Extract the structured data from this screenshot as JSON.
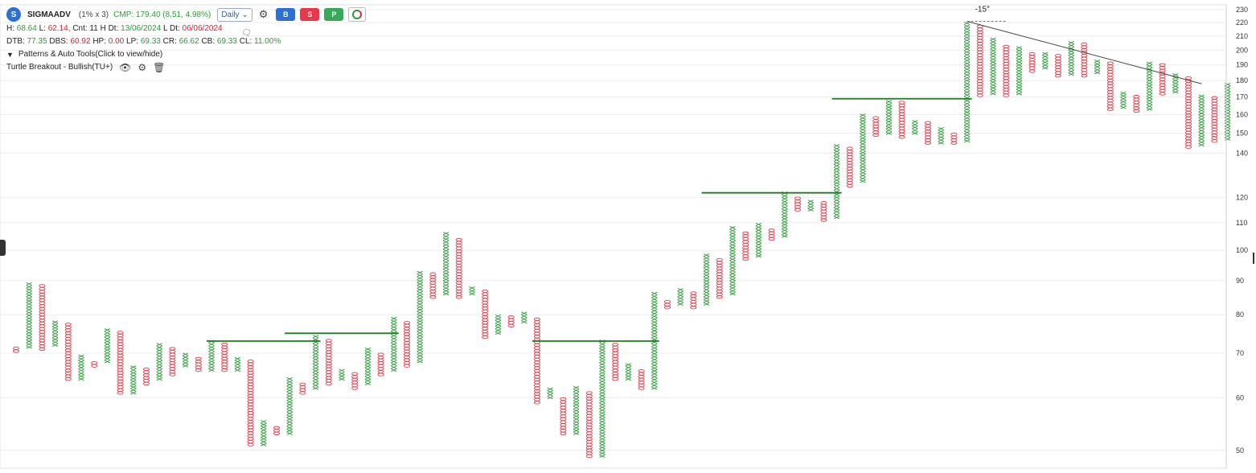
{
  "header": {
    "logo_letter": "S",
    "symbol": "SIGMAADV",
    "box_reversal": "(1% x 3)",
    "cmp": "CMP: 179.40 (8.51, 4.98%)",
    "timeframe": "Daily",
    "buy_label": "B",
    "sell_label": "S",
    "p_label": "P",
    "colors": {
      "buy": "#2d6fd2",
      "sell": "#e8394b",
      "p": "#3aa85a"
    }
  },
  "stats1": {
    "h_label": "H:",
    "h_value": "68.64",
    "l_label": "L:",
    "l_value": "62.14,",
    "cnt_label": "Cnt: 11 H Dt:",
    "h_dt": "13/06/2024",
    "l_dt_label": "L Dt:",
    "l_dt": "06/06/2024"
  },
  "stats2": {
    "dtb_label": "DTB:",
    "dtb": "77.35",
    "dbs_label": "DBS:",
    "dbs": "60.92",
    "hp_label": "HP:",
    "hp": "0.00",
    "lp_label": "LP:",
    "lp": "69.33",
    "cr_label": "CR:",
    "cr": "66.62",
    "cb_label": "CB:",
    "cb": "69.33",
    "cl_label": "CL:",
    "cl": "11.00%"
  },
  "patterns_toggle": "Patterns & Auto Tools(Click to view/hide)",
  "tool_name": "Turtle Breakout - Bullish(TU+)",
  "chart_data": {
    "type": "point-and-figure",
    "y_scale": "log",
    "ylim": [
      47,
      234
    ],
    "y_ticks": [
      50,
      60,
      70,
      80,
      90,
      100,
      110,
      120,
      140,
      150,
      160,
      170,
      180,
      190,
      200,
      210,
      220,
      230
    ],
    "colors": {
      "x": "#2e9b3a",
      "o": "#e23a48",
      "grid": "#ececec",
      "breakout": "#1f7a22",
      "trend": "#444444"
    },
    "columns": [
      {
        "t": "O",
        "hi": 71.5,
        "lo": 70.5
      },
      {
        "t": "X",
        "hi": 89,
        "lo": 71.5
      },
      {
        "t": "O",
        "hi": 88,
        "lo": 71
      },
      {
        "t": "X",
        "hi": 78,
        "lo": 72
      },
      {
        "t": "O",
        "hi": 77,
        "lo": 64
      },
      {
        "t": "X",
        "hi": 69,
        "lo": 64
      },
      {
        "t": "O",
        "hi": 68,
        "lo": 67
      },
      {
        "t": "X",
        "hi": 76,
        "lo": 68
      },
      {
        "t": "O",
        "hi": 75,
        "lo": 61
      },
      {
        "t": "X",
        "hi": 67,
        "lo": 61
      },
      {
        "t": "O",
        "hi": 66,
        "lo": 63
      },
      {
        "t": "X",
        "hi": 72,
        "lo": 64
      },
      {
        "t": "O",
        "hi": 71,
        "lo": 65
      },
      {
        "t": "X",
        "hi": 70,
        "lo": 67
      },
      {
        "t": "O",
        "hi": 69,
        "lo": 66
      },
      {
        "t": "X",
        "hi": 73,
        "lo": 66
      },
      {
        "t": "O",
        "hi": 72,
        "lo": 66
      },
      {
        "t": "X",
        "hi": 69,
        "lo": 66
      },
      {
        "t": "O",
        "hi": 68,
        "lo": 51
      },
      {
        "t": "X",
        "hi": 55,
        "lo": 51
      },
      {
        "t": "O",
        "hi": 54,
        "lo": 53
      },
      {
        "t": "X",
        "hi": 64,
        "lo": 53
      },
      {
        "t": "O",
        "hi": 63,
        "lo": 61
      },
      {
        "t": "X",
        "hi": 74,
        "lo": 62
      },
      {
        "t": "O",
        "hi": 73,
        "lo": 63
      },
      {
        "t": "X",
        "hi": 66,
        "lo": 64
      },
      {
        "t": "O",
        "hi": 65,
        "lo": 62
      },
      {
        "t": "X",
        "hi": 71,
        "lo": 63
      },
      {
        "t": "O",
        "hi": 70,
        "lo": 65
      },
      {
        "t": "X",
        "hi": 79,
        "lo": 66
      },
      {
        "t": "O",
        "hi": 78,
        "lo": 67
      },
      {
        "t": "X",
        "hi": 93,
        "lo": 68
      },
      {
        "t": "O",
        "hi": 92,
        "lo": 85
      },
      {
        "t": "X",
        "hi": 106,
        "lo": 86
      },
      {
        "t": "O",
        "hi": 104,
        "lo": 85
      },
      {
        "t": "X",
        "hi": 88,
        "lo": 86
      },
      {
        "t": "O",
        "hi": 87,
        "lo": 74
      },
      {
        "t": "X",
        "hi": 80,
        "lo": 75
      },
      {
        "t": "O",
        "hi": 79,
        "lo": 77
      },
      {
        "t": "X",
        "hi": 80,
        "lo": 78
      },
      {
        "t": "O",
        "hi": 79,
        "lo": 59
      },
      {
        "t": "X",
        "hi": 62,
        "lo": 60
      },
      {
        "t": "O",
        "hi": 60,
        "lo": 53
      },
      {
        "t": "X",
        "hi": 62,
        "lo": 53
      },
      {
        "t": "O",
        "hi": 61,
        "lo": 49
      },
      {
        "t": "X",
        "hi": 73,
        "lo": 49
      },
      {
        "t": "O",
        "hi": 72,
        "lo": 64
      },
      {
        "t": "X",
        "hi": 67,
        "lo": 64
      },
      {
        "t": "O",
        "hi": 66,
        "lo": 62
      },
      {
        "t": "X",
        "hi": 86,
        "lo": 62
      },
      {
        "t": "O",
        "hi": 84,
        "lo": 82
      },
      {
        "t": "X",
        "hi": 87,
        "lo": 83
      },
      {
        "t": "O",
        "hi": 86,
        "lo": 82
      },
      {
        "t": "X",
        "hi": 98,
        "lo": 83
      },
      {
        "t": "O",
        "hi": 97,
        "lo": 85
      },
      {
        "t": "X",
        "hi": 108,
        "lo": 86
      },
      {
        "t": "O",
        "hi": 106,
        "lo": 97
      },
      {
        "t": "X",
        "hi": 109,
        "lo": 98
      },
      {
        "t": "O",
        "hi": 107,
        "lo": 104
      },
      {
        "t": "X",
        "hi": 122,
        "lo": 105
      },
      {
        "t": "O",
        "hi": 120,
        "lo": 115
      },
      {
        "t": "X",
        "hi": 119,
        "lo": 115
      },
      {
        "t": "O",
        "hi": 118,
        "lo": 111
      },
      {
        "t": "X",
        "hi": 144,
        "lo": 112
      },
      {
        "t": "O",
        "hi": 142,
        "lo": 125
      },
      {
        "t": "X",
        "hi": 160,
        "lo": 127
      },
      {
        "t": "O",
        "hi": 158,
        "lo": 149
      },
      {
        "t": "X",
        "hi": 168,
        "lo": 150
      },
      {
        "t": "O",
        "hi": 167,
        "lo": 148
      },
      {
        "t": "X",
        "hi": 156,
        "lo": 150
      },
      {
        "t": "O",
        "hi": 155,
        "lo": 145
      },
      {
        "t": "X",
        "hi": 152,
        "lo": 145
      },
      {
        "t": "O",
        "hi": 150,
        "lo": 145
      },
      {
        "t": "X",
        "hi": 220,
        "lo": 146
      },
      {
        "t": "O",
        "hi": 218,
        "lo": 171
      },
      {
        "t": "X",
        "hi": 207,
        "lo": 172
      },
      {
        "t": "O",
        "hi": 203,
        "lo": 171
      },
      {
        "t": "X",
        "hi": 201,
        "lo": 172
      },
      {
        "t": "O",
        "hi": 198,
        "lo": 186
      },
      {
        "t": "X",
        "hi": 197,
        "lo": 188
      },
      {
        "t": "O",
        "hi": 196,
        "lo": 183
      },
      {
        "t": "X",
        "hi": 206,
        "lo": 184
      },
      {
        "t": "O",
        "hi": 204,
        "lo": 183
      },
      {
        "t": "X",
        "hi": 193,
        "lo": 185
      },
      {
        "t": "O",
        "hi": 192,
        "lo": 163
      },
      {
        "t": "X",
        "hi": 173,
        "lo": 164
      },
      {
        "t": "O",
        "hi": 171,
        "lo": 162
      },
      {
        "t": "X",
        "hi": 192,
        "lo": 163
      },
      {
        "t": "O",
        "hi": 190,
        "lo": 172
      },
      {
        "t": "X",
        "hi": 183,
        "lo": 173
      },
      {
        "t": "O",
        "hi": 181,
        "lo": 143
      },
      {
        "t": "X",
        "hi": 171,
        "lo": 144
      },
      {
        "t": "O",
        "hi": 169,
        "lo": 146
      },
      {
        "t": "X",
        "hi": 177,
        "lo": 147
      }
    ],
    "breakout_lines": [
      {
        "col_start": 15,
        "col_end": 23,
        "y": 73
      },
      {
        "col_start": 21,
        "col_end": 29,
        "y": 75
      },
      {
        "col_start": 40,
        "col_end": 49,
        "y": 73
      },
      {
        "col_start": 53,
        "col_end": 63,
        "y": 122
      },
      {
        "col_start": 63,
        "col_end": 73,
        "y": 169
      }
    ],
    "trendline": {
      "col_start": 73,
      "y_start": 221,
      "col_end": 91,
      "y_end": 178
    },
    "angle_label": "-15°",
    "angle_ref": {
      "col_start": 73,
      "col_end": 76,
      "y": 221
    }
  }
}
